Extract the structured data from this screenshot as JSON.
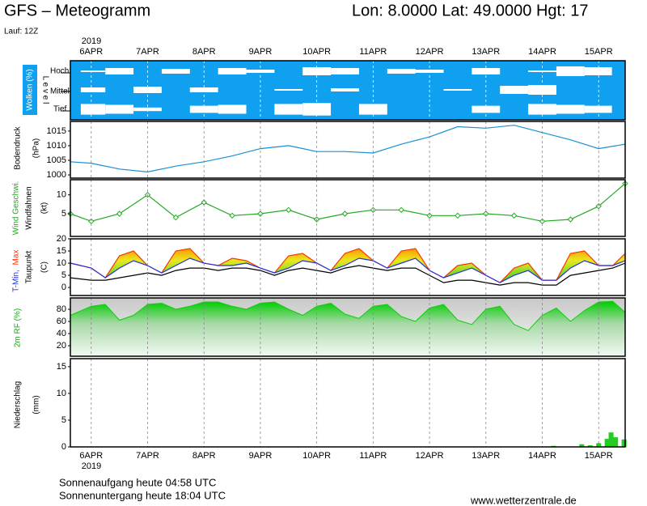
{
  "header": {
    "title": "GFS – Meteogramm",
    "location": "Lon: 8.0000 Lat: 49.0000 Hgt: 17",
    "run": "Lauf: 12Z"
  },
  "x_axis": {
    "year": "2019",
    "xlim": [
      -0.37,
      9.47
    ],
    "xticks": [
      {
        "value": 0,
        "label": "6APR"
      },
      {
        "value": 1,
        "label": "7APR"
      },
      {
        "value": 2,
        "label": "8APR"
      },
      {
        "value": 3,
        "label": "9APR"
      },
      {
        "value": 4,
        "label": "10APR"
      },
      {
        "value": 5,
        "label": "11APR"
      },
      {
        "value": 6,
        "label": "12APR"
      },
      {
        "value": 7,
        "label": "13APR"
      },
      {
        "value": 8,
        "label": "14APR"
      },
      {
        "value": 9,
        "label": "15APR"
      }
    ]
  },
  "chart_data": [
    {
      "type": "cloud",
      "label": "Wolken (%)",
      "axis_label": "L e v e l",
      "background": "#0fa0f0",
      "x": [
        -0.37,
        0,
        0.5,
        1,
        1.5,
        2,
        2.5,
        3,
        3.5,
        4,
        4.5,
        5,
        5.5,
        6,
        6.5,
        7,
        7.5,
        8,
        8.5,
        9,
        9.47
      ],
      "series": [
        {
          "name": "Hoch",
          "values": [
            100,
            90,
            60,
            100,
            70,
            100,
            60,
            80,
            100,
            50,
            60,
            100,
            70,
            80,
            100,
            60,
            100,
            90,
            40,
            50,
            100
          ]
        },
        {
          "name": "Mittel",
          "values": [
            100,
            70,
            100,
            60,
            100,
            70,
            100,
            100,
            90,
            100,
            80,
            100,
            100,
            100,
            90,
            100,
            50,
            40,
            100,
            100,
            100
          ]
        },
        {
          "name": "Tief",
          "values": [
            100,
            40,
            50,
            80,
            100,
            60,
            50,
            100,
            40,
            30,
            100,
            40,
            100,
            100,
            100,
            60,
            100,
            40,
            50,
            60,
            100
          ]
        }
      ]
    },
    {
      "type": "line",
      "title": "Bodendruck",
      "unit": "(hPa)",
      "ylim": [
        998.9,
        1018.3
      ],
      "yticks": [
        1000,
        1005,
        1010,
        1015
      ],
      "x": [
        -0.37,
        0,
        0.5,
        1,
        1.5,
        2,
        2.5,
        3,
        3.5,
        4,
        4.5,
        5,
        5.5,
        6,
        6.5,
        7,
        7.5,
        8,
        8.5,
        9,
        9.47
      ],
      "series": [
        {
          "color": "#1a8fd6",
          "values": [
            1004.5,
            1004,
            1002,
            1001,
            1003,
            1004.5,
            1006.5,
            1009,
            1010,
            1008,
            1008,
            1007.5,
            1010.5,
            1013,
            1016.5,
            1016,
            1017,
            1014.5,
            1012,
            1009,
            1010.5
          ]
        }
      ]
    },
    {
      "type": "line",
      "title": "Windfahnen",
      "unit": "(kt)",
      "ylim": [
        -1,
        14
      ],
      "yticks": [
        5,
        10
      ],
      "marker": "diamond",
      "x": [
        -0.37,
        0,
        0.5,
        1,
        1.5,
        2,
        2.5,
        3,
        3.5,
        4,
        4.5,
        5,
        5.5,
        6,
        6.5,
        7,
        7.5,
        8,
        8.5,
        9,
        9.47
      ],
      "series": [
        {
          "name": "Wind Geschwi.",
          "color": "#22aa22",
          "values": [
            5,
            3,
            5,
            10,
            4,
            8,
            4.5,
            5,
            6,
            3.5,
            5,
            6,
            6,
            4.5,
            4.5,
            5,
            4.5,
            3,
            3.5,
            7,
            13
          ]
        }
      ]
    },
    {
      "type": "line",
      "unit": "(C)",
      "ylim": [
        -3.3,
        20
      ],
      "yticks": [
        0,
        5,
        10,
        15,
        20
      ],
      "fill": true,
      "x": [
        -0.37,
        0,
        0.25,
        0.5,
        0.75,
        1,
        1.25,
        1.5,
        1.75,
        2,
        2.25,
        2.5,
        2.75,
        3,
        3.25,
        3.5,
        3.75,
        4,
        4.25,
        4.5,
        4.75,
        5,
        5.25,
        5.5,
        5.75,
        6,
        6.25,
        6.5,
        6.75,
        7,
        7.25,
        7.5,
        7.75,
        8,
        8.25,
        8.5,
        8.75,
        9,
        9.25,
        9.47
      ],
      "series": [
        {
          "name": "Max",
          "color": "#ff3300",
          "values": [
            10,
            8,
            4,
            13,
            15,
            9,
            6,
            15,
            16,
            10,
            9,
            12,
            11,
            8,
            6,
            13,
            14,
            10,
            7,
            14,
            16,
            11,
            8,
            15,
            16,
            7,
            4,
            9,
            10,
            5,
            2,
            8,
            10,
            3,
            3,
            14,
            15,
            9,
            9,
            14
          ]
        },
        {
          "name": "T-Min,",
          "color": "#2233dd",
          "values": [
            10,
            8,
            4,
            8,
            11,
            9,
            6,
            9,
            12,
            10,
            9,
            9,
            10,
            8,
            6,
            8,
            11,
            10,
            7,
            9,
            12,
            11,
            8,
            10,
            12,
            7,
            4,
            6,
            8,
            5,
            2,
            5,
            7,
            3,
            3,
            8,
            11,
            9,
            9,
            11
          ]
        },
        {
          "name": "Taupunkt",
          "color": "#000000",
          "values": [
            4,
            3,
            3,
            4,
            5,
            6,
            5,
            7,
            8,
            8,
            7,
            8,
            8,
            7,
            5,
            7,
            8,
            7,
            6,
            8,
            9,
            8,
            7,
            8,
            8,
            5,
            2,
            3,
            3,
            2,
            1,
            2,
            2,
            1,
            1,
            5,
            6,
            7,
            8,
            10
          ]
        }
      ]
    },
    {
      "type": "area",
      "ylim": [
        2.7,
        98.7
      ],
      "yticks": [
        20,
        40,
        60,
        80
      ],
      "x": [
        -0.37,
        0,
        0.25,
        0.5,
        0.75,
        1,
        1.25,
        1.5,
        1.75,
        2,
        2.25,
        2.5,
        2.75,
        3,
        3.25,
        3.5,
        3.75,
        4,
        4.25,
        4.5,
        4.75,
        5,
        5.25,
        5.5,
        5.75,
        6,
        6.25,
        6.5,
        6.75,
        7,
        7.25,
        7.5,
        7.75,
        8,
        8.25,
        8.5,
        8.75,
        9,
        9.25,
        9.47
      ],
      "series": [
        {
          "name": "2m RF (%)",
          "color": "#11cc11",
          "values": [
            70,
            85,
            88,
            62,
            70,
            88,
            90,
            80,
            85,
            92,
            92,
            85,
            80,
            90,
            92,
            80,
            70,
            85,
            90,
            72,
            65,
            85,
            88,
            68,
            60,
            82,
            88,
            62,
            55,
            80,
            85,
            55,
            45,
            70,
            82,
            60,
            78,
            92,
            93,
            75
          ]
        }
      ]
    },
    {
      "type": "bar",
      "title": "Niederschlag",
      "unit": "(mm)",
      "ylim": [
        0,
        16.5
      ],
      "yticks": [
        0,
        5,
        10,
        15
      ],
      "x": [
        8.2,
        8.7,
        8.85,
        9.0,
        9.15,
        9.22,
        9.3,
        9.45
      ],
      "series": [
        {
          "color": "#22cc22",
          "values": [
            0.2,
            0.5,
            0.3,
            0.7,
            1.5,
            2.7,
            1.8,
            1.4
          ]
        }
      ]
    }
  ],
  "footer": {
    "sunrise": "Sonnenaufgang heute 04:58 UTC",
    "sunset": "Sonnenuntergang heute 18:04 UTC",
    "source": "www.wetterzentrale.de"
  }
}
